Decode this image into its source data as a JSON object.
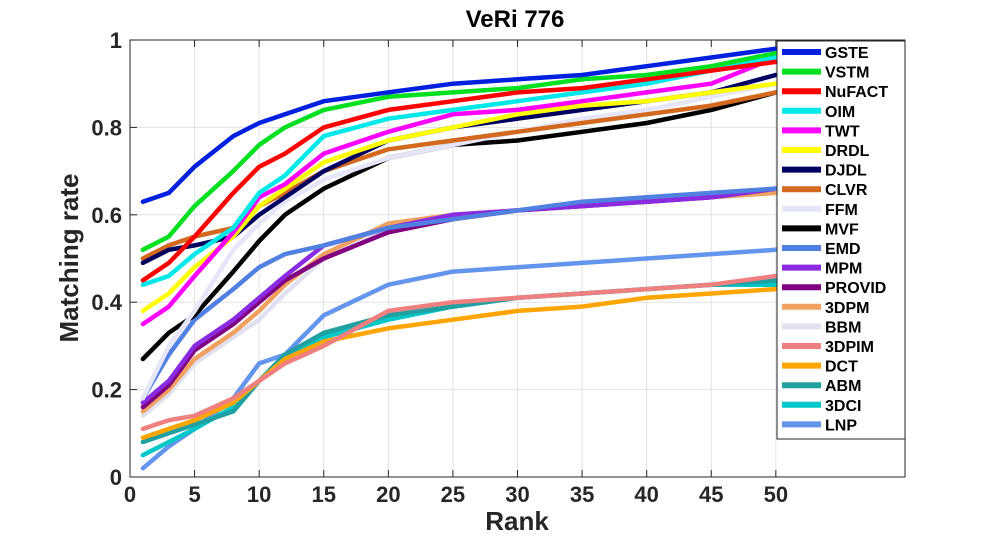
{
  "chart_data": {
    "type": "line",
    "title": "VeRi 776",
    "xlabel": "Rank",
    "ylabel": "Matching rate",
    "xlim": [
      0,
      60
    ],
    "ylim": [
      0,
      1
    ],
    "xticks": [
      0,
      5,
      10,
      15,
      20,
      25,
      30,
      35,
      40,
      45,
      50
    ],
    "yticks": [
      0,
      0.2,
      0.4,
      0.6,
      0.8,
      1
    ],
    "ytick_labels": [
      "0",
      "0.2",
      "0.4",
      "0.6",
      "0.8",
      "1"
    ],
    "grid": true,
    "legend_position": "top-right",
    "series": [
      {
        "name": "GSTE",
        "color": "#0020E0",
        "x": [
          1,
          3,
          5,
          8,
          10,
          12,
          15,
          20,
          25,
          30,
          35,
          40,
          45,
          50
        ],
        "values": [
          0.63,
          0.65,
          0.71,
          0.78,
          0.81,
          0.83,
          0.86,
          0.88,
          0.9,
          0.91,
          0.92,
          0.94,
          0.96,
          0.98
        ]
      },
      {
        "name": "VSTM",
        "color": "#00E020",
        "x": [
          1,
          3,
          5,
          8,
          10,
          12,
          15,
          20,
          25,
          30,
          35,
          40,
          45,
          50
        ],
        "values": [
          0.52,
          0.55,
          0.62,
          0.7,
          0.76,
          0.8,
          0.84,
          0.87,
          0.88,
          0.89,
          0.91,
          0.92,
          0.94,
          0.97
        ]
      },
      {
        "name": "NuFACT",
        "color": "#FF0000",
        "x": [
          1,
          3,
          5,
          8,
          10,
          12,
          15,
          20,
          25,
          30,
          35,
          40,
          45,
          50
        ],
        "values": [
          0.45,
          0.49,
          0.55,
          0.65,
          0.71,
          0.74,
          0.8,
          0.84,
          0.86,
          0.88,
          0.89,
          0.91,
          0.93,
          0.95
        ]
      },
      {
        "name": "OIM",
        "color": "#00E8E8",
        "x": [
          1,
          3,
          5,
          8,
          10,
          12,
          15,
          20,
          25,
          30,
          35,
          40,
          45,
          50
        ],
        "values": [
          0.44,
          0.46,
          0.51,
          0.57,
          0.65,
          0.69,
          0.78,
          0.82,
          0.84,
          0.86,
          0.88,
          0.9,
          0.93,
          0.96
        ]
      },
      {
        "name": "TWT",
        "color": "#FF00FF",
        "x": [
          1,
          3,
          5,
          8,
          10,
          12,
          15,
          20,
          25,
          30,
          35,
          40,
          45,
          50
        ],
        "values": [
          0.35,
          0.39,
          0.46,
          0.56,
          0.64,
          0.67,
          0.74,
          0.79,
          0.83,
          0.84,
          0.86,
          0.88,
          0.9,
          0.96
        ]
      },
      {
        "name": "DRDL",
        "color": "#FFFF00",
        "x": [
          1,
          3,
          5,
          8,
          10,
          12,
          15,
          20,
          25,
          30,
          35,
          40,
          45,
          50
        ],
        "values": [
          0.38,
          0.42,
          0.48,
          0.55,
          0.62,
          0.66,
          0.72,
          0.77,
          0.8,
          0.83,
          0.85,
          0.86,
          0.88,
          0.9
        ]
      },
      {
        "name": "DJDL",
        "color": "#000060",
        "x": [
          1,
          3,
          5,
          8,
          10,
          12,
          15,
          20,
          25,
          30,
          35,
          40,
          45,
          50
        ],
        "values": [
          0.49,
          0.52,
          0.53,
          0.55,
          0.6,
          0.64,
          0.7,
          0.77,
          0.8,
          0.82,
          0.84,
          0.86,
          0.88,
          0.92
        ]
      },
      {
        "name": "CLVR",
        "color": "#D2691E",
        "x": [
          1,
          3,
          5,
          8,
          10,
          12,
          15,
          20,
          25,
          30,
          35,
          40,
          45,
          50
        ],
        "values": [
          0.5,
          0.53,
          0.55,
          0.57,
          0.62,
          0.65,
          0.7,
          0.75,
          0.77,
          0.79,
          0.81,
          0.83,
          0.85,
          0.88
        ]
      },
      {
        "name": "FFM",
        "color": "#E6E6FA",
        "x": [
          1,
          3,
          5,
          8,
          10,
          12,
          15,
          20,
          25,
          30,
          35,
          40,
          45,
          50
        ],
        "values": [
          0.18,
          0.3,
          0.38,
          0.52,
          0.58,
          0.63,
          0.68,
          0.73,
          0.76,
          0.79,
          0.82,
          0.84,
          0.87,
          0.9
        ]
      },
      {
        "name": "MVF",
        "color": "#000000",
        "x": [
          1,
          3,
          5,
          8,
          10,
          12,
          15,
          20,
          25,
          30,
          35,
          40,
          45,
          50
        ],
        "values": [
          0.27,
          0.33,
          0.37,
          0.47,
          0.54,
          0.6,
          0.66,
          0.73,
          0.76,
          0.77,
          0.79,
          0.81,
          0.84,
          0.88
        ]
      },
      {
        "name": "EMD",
        "color": "#5080E0",
        "x": [
          1,
          3,
          5,
          8,
          10,
          12,
          15,
          20,
          25,
          30,
          35,
          40,
          45,
          50
        ],
        "values": [
          0.18,
          0.28,
          0.36,
          0.43,
          0.48,
          0.51,
          0.53,
          0.57,
          0.59,
          0.61,
          0.63,
          0.64,
          0.65,
          0.66
        ]
      },
      {
        "name": "MPM",
        "color": "#8A2BE2",
        "x": [
          1,
          3,
          5,
          8,
          10,
          12,
          15,
          20,
          25,
          30,
          35,
          40,
          45,
          50
        ],
        "values": [
          0.17,
          0.22,
          0.3,
          0.36,
          0.41,
          0.46,
          0.53,
          0.57,
          0.6,
          0.61,
          0.62,
          0.63,
          0.64,
          0.66
        ]
      },
      {
        "name": "PROVID",
        "color": "#800080",
        "x": [
          1,
          3,
          5,
          8,
          10,
          12,
          15,
          20,
          25,
          30,
          35,
          40,
          45,
          50
        ],
        "values": [
          0.16,
          0.21,
          0.29,
          0.35,
          0.4,
          0.45,
          0.5,
          0.56,
          0.59,
          0.61,
          0.62,
          0.63,
          0.64,
          0.66
        ]
      },
      {
        "name": "3DPM",
        "color": "#F0A060",
        "x": [
          1,
          3,
          5,
          8,
          10,
          12,
          15,
          20,
          25,
          30,
          35,
          40,
          45,
          50
        ],
        "values": [
          0.15,
          0.2,
          0.27,
          0.33,
          0.38,
          0.44,
          0.51,
          0.58,
          0.6,
          0.61,
          0.62,
          0.63,
          0.64,
          0.65
        ]
      },
      {
        "name": "BBM",
        "color": "#E0E0F0",
        "x": [
          1,
          3,
          5,
          8,
          10,
          12,
          15,
          20,
          25,
          30,
          35,
          40,
          45,
          50
        ],
        "values": [
          0.14,
          0.19,
          0.26,
          0.32,
          0.36,
          0.42,
          0.5,
          0.57,
          0.6,
          0.61,
          0.62,
          0.63,
          0.64,
          0.65
        ]
      },
      {
        "name": "3DPIM",
        "color": "#F08080",
        "x": [
          1,
          3,
          5,
          8,
          10,
          12,
          15,
          20,
          25,
          30,
          35,
          40,
          45,
          50
        ],
        "values": [
          0.11,
          0.13,
          0.14,
          0.18,
          0.22,
          0.26,
          0.3,
          0.38,
          0.4,
          0.41,
          0.42,
          0.43,
          0.44,
          0.46
        ]
      },
      {
        "name": "DCT",
        "color": "#FFA500",
        "x": [
          1,
          3,
          5,
          8,
          10,
          12,
          15,
          20,
          25,
          30,
          35,
          40,
          45,
          50
        ],
        "values": [
          0.09,
          0.11,
          0.13,
          0.17,
          0.22,
          0.27,
          0.31,
          0.34,
          0.36,
          0.38,
          0.39,
          0.41,
          0.42,
          0.43
        ]
      },
      {
        "name": "ABM",
        "color": "#20A0A0",
        "x": [
          1,
          3,
          5,
          8,
          10,
          12,
          15,
          20,
          25,
          30,
          35,
          40,
          45,
          50
        ],
        "values": [
          0.08,
          0.1,
          0.12,
          0.15,
          0.22,
          0.28,
          0.33,
          0.37,
          0.39,
          0.41,
          0.42,
          0.43,
          0.44,
          0.45
        ]
      },
      {
        "name": "3DCI",
        "color": "#00C8C8",
        "x": [
          1,
          3,
          5,
          8,
          10,
          12,
          15,
          20,
          25,
          30,
          35,
          40,
          45,
          50
        ],
        "values": [
          0.05,
          0.08,
          0.11,
          0.16,
          0.22,
          0.28,
          0.32,
          0.36,
          0.39,
          0.41,
          0.42,
          0.43,
          0.44,
          0.44
        ]
      },
      {
        "name": "LNP",
        "color": "#6495ED",
        "x": [
          1,
          3,
          5,
          8,
          10,
          12,
          15,
          20,
          25,
          30,
          35,
          40,
          45,
          50
        ],
        "values": [
          0.02,
          0.07,
          0.11,
          0.18,
          0.26,
          0.28,
          0.37,
          0.44,
          0.47,
          0.48,
          0.49,
          0.5,
          0.51,
          0.52
        ]
      }
    ]
  }
}
